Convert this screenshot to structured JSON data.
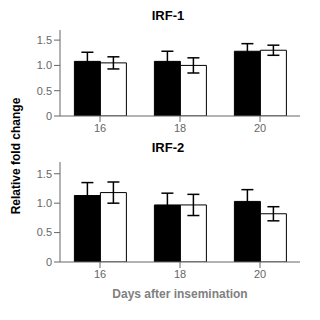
{
  "chart_data": [
    {
      "type": "bar",
      "title": "IRF-1",
      "ylabel": "Relative fold change",
      "categories": [
        "16",
        "18",
        "20"
      ],
      "series": [
        {
          "color": "#000000",
          "values": [
            1.08,
            1.08,
            1.28
          ],
          "errors": [
            0.18,
            0.2,
            0.15
          ]
        },
        {
          "color": "#ffffff",
          "values": [
            1.05,
            1.0,
            1.3
          ],
          "errors": [
            0.12,
            0.15,
            0.1
          ]
        }
      ],
      "ylim": [
        0,
        1.7
      ],
      "yticks": [
        0,
        0.5,
        {
          "value": 1.0,
          "label": "1.0"
        },
        1.5
      ],
      "grid": false
    },
    {
      "type": "bar",
      "title": "IRF-2",
      "xlabel": "Days after insemination",
      "categories": [
        "16",
        "18",
        "20"
      ],
      "series": [
        {
          "color": "#000000",
          "values": [
            1.13,
            0.97,
            1.03
          ],
          "errors": [
            0.22,
            0.2,
            0.2
          ]
        },
        {
          "color": "#ffffff",
          "values": [
            1.18,
            0.97,
            0.82
          ],
          "errors": [
            0.18,
            0.18,
            0.12
          ]
        }
      ],
      "ylim": [
        0,
        1.7
      ],
      "yticks": [
        0,
        0.5,
        {
          "value": 1.0,
          "label": "1.0"
        },
        1.5
      ],
      "grid": false
    }
  ]
}
